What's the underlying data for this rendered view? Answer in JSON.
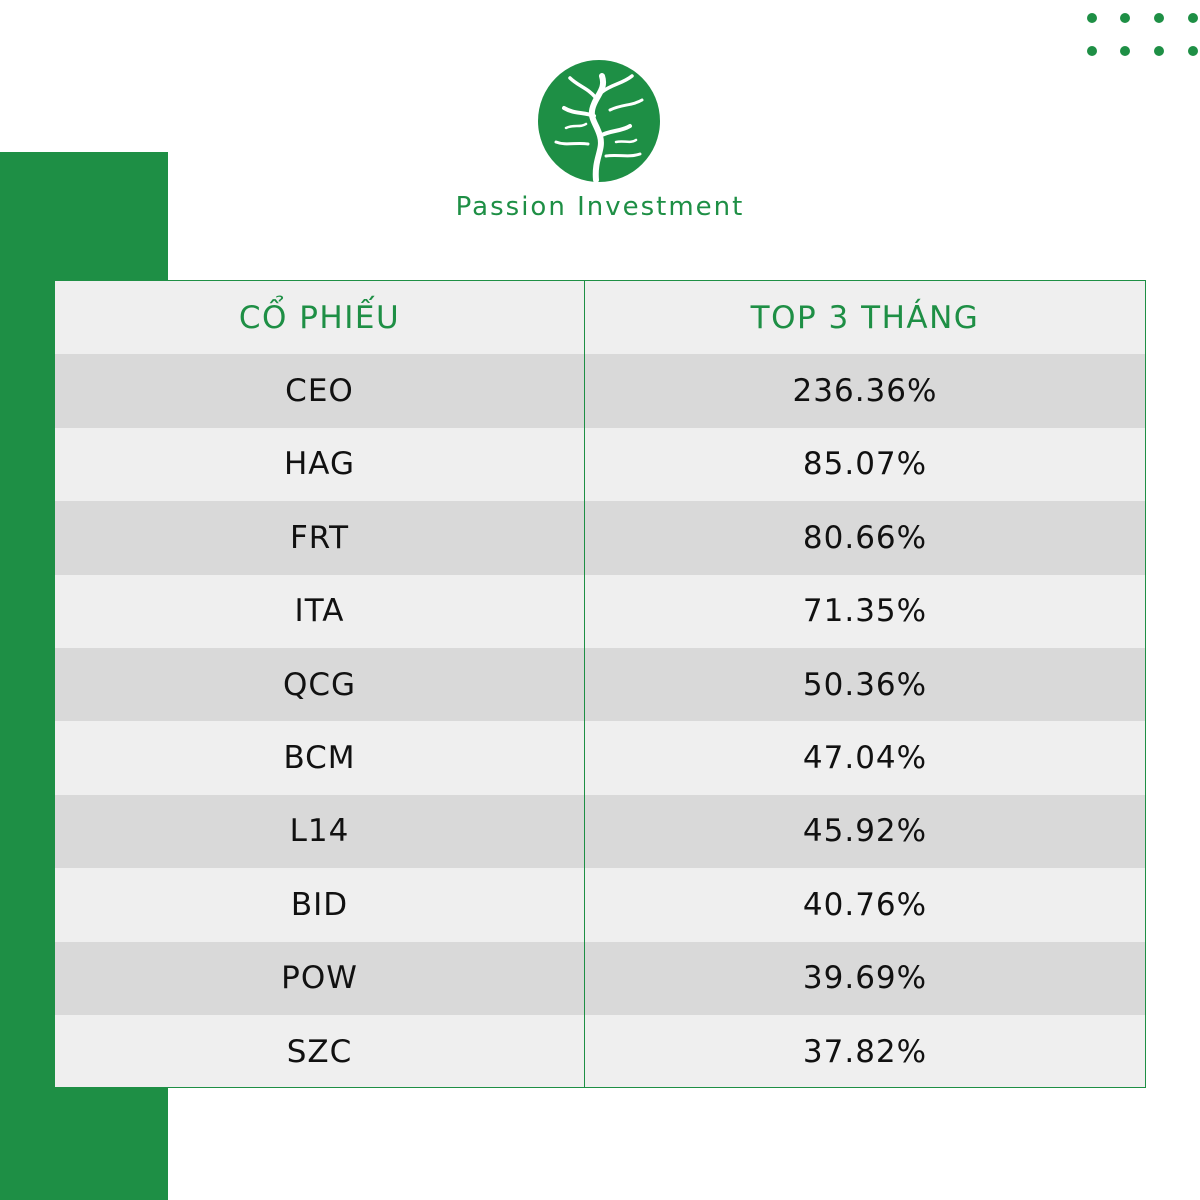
{
  "brand": {
    "name": "Passion Investment",
    "accent": "#1e8f45"
  },
  "chart_data": {
    "type": "table",
    "columns": [
      "CỔ PHIẾU",
      "TOP 3 THÁNG"
    ],
    "rows": [
      [
        "CEO",
        "236.36%"
      ],
      [
        "HAG",
        "85.07%"
      ],
      [
        "FRT",
        "80.66%"
      ],
      [
        "ITA",
        "71.35%"
      ],
      [
        "QCG",
        "50.36%"
      ],
      [
        "BCM",
        "47.04%"
      ],
      [
        "L14",
        "45.92%"
      ],
      [
        "BID",
        "40.76%"
      ],
      [
        "POW",
        "39.69%"
      ],
      [
        "SZC",
        "37.82%"
      ]
    ],
    "colors": {
      "header_text": "#1e8f45",
      "body_text": "#111111",
      "row_light": "#efefef",
      "row_shade": "#d9d9d9"
    }
  }
}
